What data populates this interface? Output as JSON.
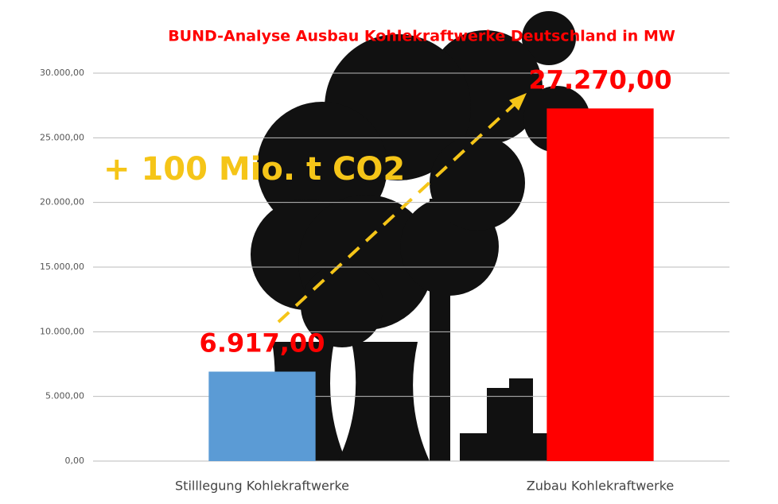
{
  "chart_data": {
    "type": "bar",
    "title": "BUND-Analyse Ausbau Kohlekraftwerke Deutschland in MW",
    "annotation": "+ 100 Mio. t CO2",
    "categories": [
      "Stilllegung Kohlekraftwerke",
      "Zubau Kohlekraftwerke"
    ],
    "values": [
      6917,
      27270
    ],
    "value_labels": [
      "6.917,00",
      "27.270,00"
    ],
    "colors": [
      "#5b9bd5",
      "#ff0000"
    ],
    "ylim": [
      0,
      30000
    ],
    "yticks": [
      {
        "value": 0,
        "label": "0,00"
      },
      {
        "value": 5000,
        "label": "5.000,00"
      },
      {
        "value": 10000,
        "label": "10.000,00"
      },
      {
        "value": 15000,
        "label": "15.000,00"
      },
      {
        "value": 20000,
        "label": "20.000,00"
      },
      {
        "value": 25000,
        "label": "25.000,00"
      },
      {
        "value": 30000,
        "label": "30.000,00"
      }
    ],
    "grid": true
  }
}
